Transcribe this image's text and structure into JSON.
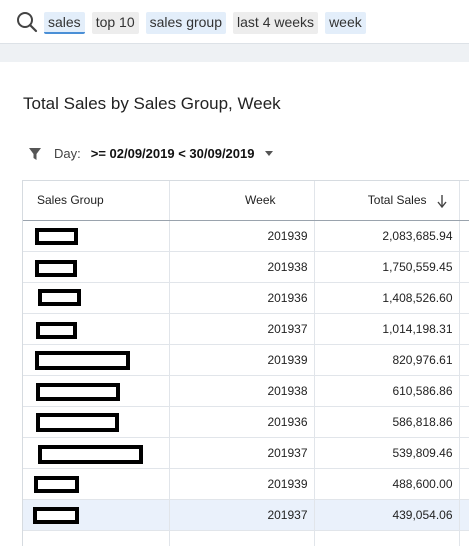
{
  "search": {
    "tokens": [
      {
        "text": "sales",
        "style": "blue",
        "active": true
      },
      {
        "text": "top 10",
        "style": "grey"
      },
      {
        "text": "sales group",
        "style": "blue"
      },
      {
        "text": "last 4 weeks",
        "style": "grey"
      },
      {
        "text": "week",
        "style": "blue"
      }
    ]
  },
  "title": "Total Sales by Sales Group, Week",
  "filter": {
    "label": "Day:",
    "value": ">= 02/09/2019 < 30/09/2019"
  },
  "table": {
    "columns": [
      "Sales Group",
      "Week",
      "Total Sales"
    ],
    "sort": {
      "column": "Total Sales",
      "direction": "descending"
    },
    "rows": [
      {
        "sales_group": "[redacted]",
        "week": "201939",
        "total_sales": "2,083,685.94"
      },
      {
        "sales_group": "[redacted]",
        "week": "201938",
        "total_sales": "1,750,559.45"
      },
      {
        "sales_group": "[redacted]",
        "week": "201936",
        "total_sales": "1,408,526.60"
      },
      {
        "sales_group": "[redacted]",
        "week": "201937",
        "total_sales": "1,014,198.31"
      },
      {
        "sales_group": "[redacted]",
        "week": "201939",
        "total_sales": "820,976.61"
      },
      {
        "sales_group": "[redacted]",
        "week": "201938",
        "total_sales": "610,586.86"
      },
      {
        "sales_group": "[redacted]",
        "week": "201936",
        "total_sales": "586,818.86"
      },
      {
        "sales_group": "[redacted]",
        "week": "201937",
        "total_sales": "539,809.46"
      },
      {
        "sales_group": "[redacted]",
        "week": "201939",
        "total_sales": "488,600.00"
      },
      {
        "sales_group": "[redacted]",
        "week": "201937",
        "total_sales": "439,054.06"
      }
    ]
  },
  "colors": {
    "accent": "#4a8fd6",
    "token_blue": "#e3eefa",
    "token_grey": "#ededed",
    "selected_row": "#eaf1fb"
  }
}
